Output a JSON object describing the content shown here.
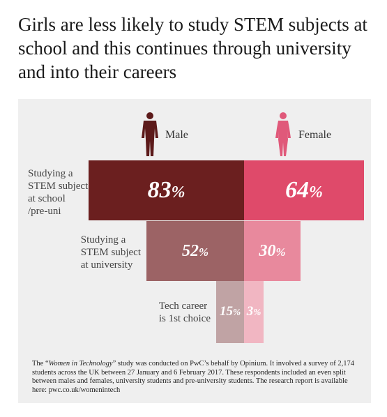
{
  "title": "Girls are less likely to study STEM subjects at school and this continues through university and into their careers",
  "legend": {
    "male": "Male",
    "female": "Female"
  },
  "colors": {
    "male": [
      "#6b1f1f",
      "#9c6365",
      "#c0a3a4"
    ],
    "female": [
      "#df4a6a",
      "#e8899d",
      "#f1b6c2"
    ],
    "male_icon": "#5c1a1a",
    "female_icon": "#e0597a",
    "panel": "#efefef"
  },
  "chart_data": {
    "type": "bar",
    "categories": [
      "Studying a STEM subject at school /pre-uni",
      "Studying a STEM subject at university",
      "Tech career is 1st choice"
    ],
    "category_lines": [
      [
        "Studying a",
        "STEM subject",
        "at school",
        "/pre-uni"
      ],
      [
        "Studying a",
        "STEM subject",
        "at university"
      ],
      [
        "Tech career",
        "is 1st choice"
      ]
    ],
    "series": [
      {
        "name": "Male",
        "values": [
          83,
          52,
          15
        ]
      },
      {
        "name": "Female",
        "values": [
          64,
          30,
          3
        ]
      }
    ],
    "unit": "%",
    "ylim": [
      0,
      100
    ]
  },
  "footnote": {
    "prefix": "The “",
    "study_name": "Women in Technology",
    "text": "” study was conducted on PwC’s behalf by Opinium. It involved a survey of 2,174 students across the UK between 27 January and 6 February 2017. These respondents included an even split between males and females, university students and pre-university students. The research report is available here: pwc.co.uk/womenintech"
  }
}
